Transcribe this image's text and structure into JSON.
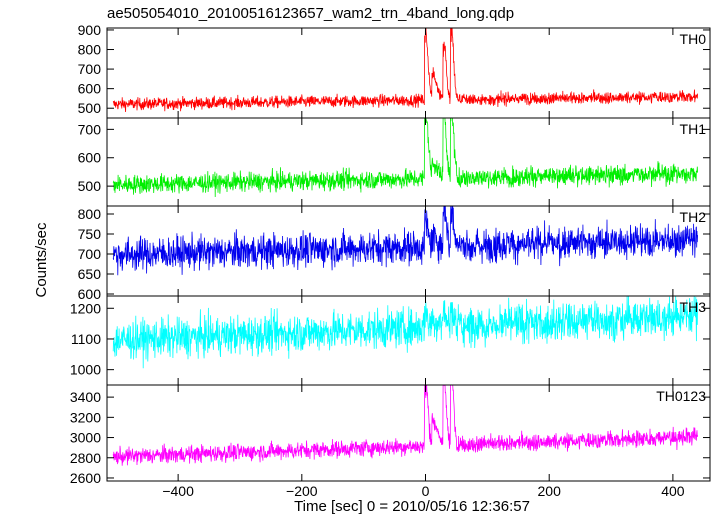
{
  "chart_data": {
    "type": "line",
    "title": "ae505054010_20100516123657_wam2_trn_4band_long.qdp",
    "xlabel": "Time [sec] 0 = 2010/05/16 12:36:57",
    "ylabel": "Counts/sec",
    "xlim": [
      -515,
      460
    ],
    "xticks": [
      -400,
      -200,
      0,
      200,
      400
    ],
    "x_range_data": [
      -505,
      440
    ],
    "bursts": [
      {
        "t": 0,
        "width": 6
      },
      {
        "t": 12,
        "width": 10
      },
      {
        "t": 30,
        "width": 5
      },
      {
        "t": 42,
        "width": 5
      }
    ],
    "panels": [
      {
        "name": "TH0",
        "color": "#ff0000",
        "ylim": [
          450,
          910
        ],
        "yticks": [
          500,
          600,
          700,
          800,
          900
        ],
        "baseline_start": 520,
        "baseline_end": 560,
        "noise": 22,
        "burst_peaks": [
          870,
          640,
          810,
          880
        ]
      },
      {
        "name": "TH1",
        "color": "#00ee00",
        "ylim": [
          430,
          740
        ],
        "yticks": [
          500,
          600,
          700
        ],
        "baseline_start": 505,
        "baseline_end": 545,
        "noise": 24,
        "burst_peaks": [
          750,
          560,
          740,
          750
        ]
      },
      {
        "name": "TH2",
        "color": "#0000ee",
        "ylim": [
          595,
          820
        ],
        "yticks": [
          600,
          650,
          700,
          750,
          800
        ],
        "baseline_start": 698,
        "baseline_end": 735,
        "noise": 30,
        "burst_peaks": [
          760,
          720,
          800,
          790
        ]
      },
      {
        "name": "TH3",
        "color": "#00ffff",
        "ylim": [
          950,
          1240
        ],
        "yticks": [
          1000,
          1100,
          1200
        ],
        "baseline_start": 1095,
        "baseline_end": 1175,
        "noise": 45,
        "burst_peaks": [
          1150,
          1120,
          1150,
          1150
        ]
      },
      {
        "name": "TH0123",
        "color": "#ff00ff",
        "ylim": [
          2570,
          3520
        ],
        "yticks": [
          2600,
          2800,
          3000,
          3200,
          3400
        ],
        "baseline_start": 2810,
        "baseline_end": 3010,
        "noise": 60,
        "burst_peaks": [
          3420,
          3050,
          3500,
          3520
        ]
      }
    ]
  }
}
